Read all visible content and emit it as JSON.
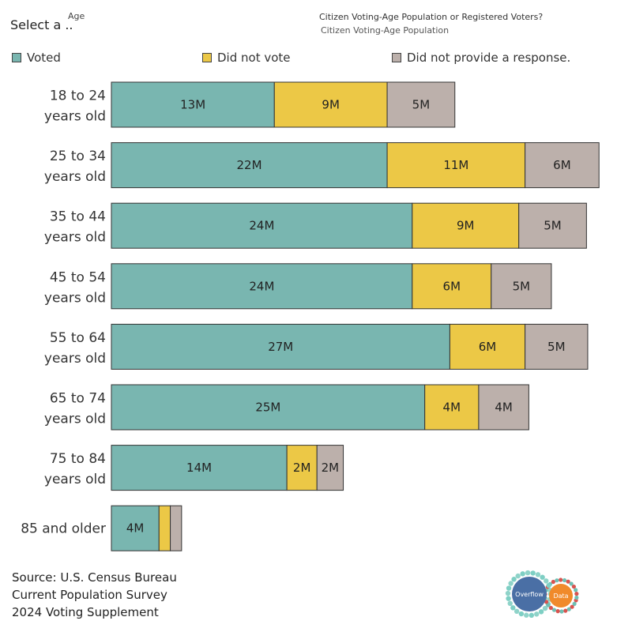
{
  "header": {
    "select_label": "Select a ..",
    "age_label": "Age",
    "population_title": "Citizen Voting-Age Population or Registered Voters?",
    "population_value": "Citizen Voting-Age Population"
  },
  "legend": [
    {
      "label": "Voted",
      "color": "#79b6b0"
    },
    {
      "label": "Did not vote",
      "color": "#ecc846"
    },
    {
      "label": "Did not provide a response.",
      "color": "#bcb0ab"
    }
  ],
  "chart_data": {
    "type": "bar",
    "orientation": "horizontal",
    "stacked": true,
    "value_unit": "millions",
    "categories": [
      [
        "18 to 24",
        "years old"
      ],
      [
        "25 to 34",
        "years old"
      ],
      [
        "35 to 44",
        "years old"
      ],
      [
        "45 to 54",
        "years old"
      ],
      [
        "55 to 64",
        "years old"
      ],
      [
        "65 to 74",
        "years old"
      ],
      [
        "75 to 84",
        "years old"
      ],
      [
        "85 and older"
      ]
    ],
    "series": [
      {
        "name": "Voted",
        "color": "#79b6b0",
        "values": [
          13,
          22,
          24,
          24,
          27,
          25,
          14,
          3.8
        ],
        "labels": [
          "13M",
          "22M",
          "24M",
          "24M",
          "27M",
          "25M",
          "14M",
          "4M"
        ]
      },
      {
        "name": "Did not vote",
        "color": "#ecc846",
        "values": [
          9,
          11,
          8.5,
          6.3,
          6,
          4.3,
          2.4,
          0.9
        ],
        "labels": [
          "9M",
          "11M",
          "9M",
          "6M",
          "6M",
          "4M",
          "2M",
          ""
        ]
      },
      {
        "name": "Did not provide a response.",
        "color": "#bcb0ab",
        "values": [
          5.4,
          5.9,
          5.4,
          4.8,
          5,
          4,
          2.1,
          0.9
        ],
        "labels": [
          "5M",
          "6M",
          "5M",
          "5M",
          "5M",
          "4M",
          "2M",
          ""
        ]
      }
    ],
    "xlim": [
      0,
      39.2
    ],
    "grid": false,
    "legend_position": "top"
  },
  "source": {
    "lines": [
      "Source: U.S. Census Bureau",
      "Current Population Survey",
      "2024 Voting Supplement"
    ]
  },
  "logo": {
    "left_text": "Overflow",
    "right_text": "Data",
    "colors": {
      "blue": "#4a6fa5",
      "orange": "#f08a2b",
      "teal": "#7ecfc4",
      "red": "#d9534f"
    }
  }
}
